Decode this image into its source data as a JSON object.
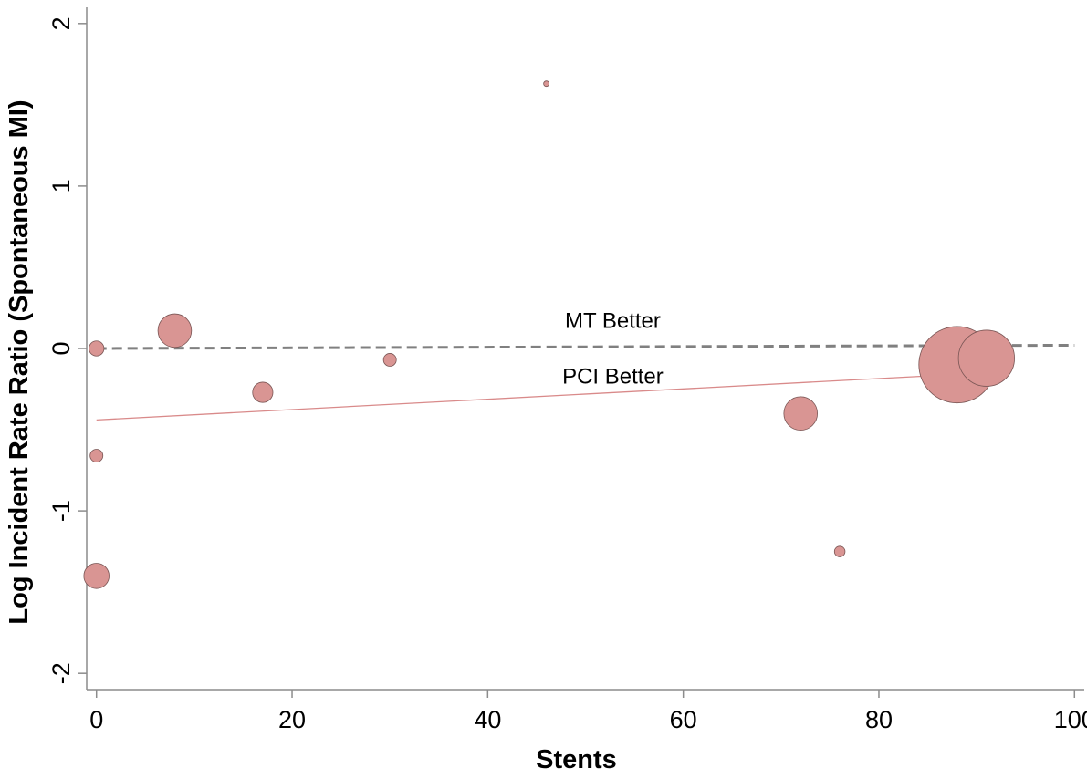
{
  "chart_data": {
    "type": "scatter",
    "title": "",
    "xlabel": "Stents",
    "ylabel": "Log Incident Rate Ratio (Spontaneous MI)",
    "xlim": [
      -1,
      101
    ],
    "ylim": [
      -2.1,
      2.1
    ],
    "x_ticks": [
      0,
      20,
      40,
      60,
      80,
      100
    ],
    "y_ticks": [
      -2,
      -1,
      0,
      1,
      2
    ],
    "x_tick_labels": [
      "0",
      "20",
      "40",
      "60",
      "80",
      "100"
    ],
    "y_tick_labels": [
      "-2",
      "-1",
      "0",
      "1",
      "2"
    ],
    "grid": false,
    "legend": "none",
    "colors": {
      "bubble_fill": "#d99593",
      "bubble_stroke": "#7a5655",
      "reference_line": "#808080",
      "fit_line": "#d98a8a",
      "axis": "#8c8c8c"
    },
    "points": [
      {
        "x": 0,
        "y": 0.0,
        "weight": 0.3
      },
      {
        "x": 0,
        "y": -0.66,
        "weight": 0.22
      },
      {
        "x": 0,
        "y": -1.4,
        "weight": 0.85
      },
      {
        "x": 8,
        "y": 0.11,
        "weight": 1.5
      },
      {
        "x": 17,
        "y": -0.27,
        "weight": 0.55
      },
      {
        "x": 30,
        "y": -0.07,
        "weight": 0.22
      },
      {
        "x": 46,
        "y": 1.63,
        "weight": 0.04
      },
      {
        "x": 72,
        "y": -0.4,
        "weight": 1.5
      },
      {
        "x": 76,
        "y": -1.25,
        "weight": 0.15
      },
      {
        "x": 91,
        "y": -0.06,
        "weight": 4.2
      },
      {
        "x": 88,
        "y": -0.1,
        "weight": 7.8
      }
    ],
    "reference_line": {
      "label": "MT Better",
      "x": [
        0,
        100
      ],
      "y": [
        0.0,
        0.02
      ]
    },
    "fit_line": {
      "label": "PCI Better",
      "x": [
        0,
        91
      ],
      "y": [
        -0.44,
        -0.15
      ]
    },
    "annotations": [
      {
        "text": "MT Better",
        "x": 48.5,
        "y": 0.17
      },
      {
        "text": "PCI Better",
        "x": 48.5,
        "y": -0.17
      }
    ]
  }
}
